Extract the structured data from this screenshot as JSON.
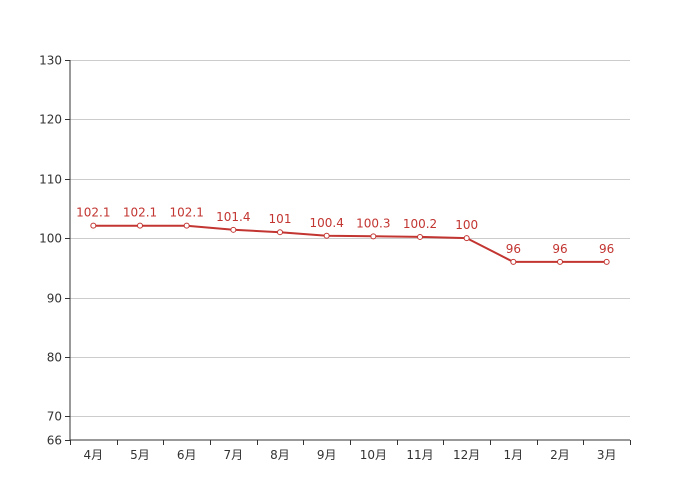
{
  "chart_data": {
    "type": "line",
    "categories": [
      "4月",
      "5月",
      "6月",
      "7月",
      "8月",
      "9月",
      "10月",
      "11月",
      "12月",
      "1月",
      "2月",
      "3月"
    ],
    "series": [
      {
        "values": [
          102.1,
          102.1,
          102.1,
          101.4,
          101,
          100.4,
          100.3,
          100.2,
          100,
          96,
          96,
          96
        ],
        "color": "#c23531"
      }
    ],
    "data_labels": [
      "102.1",
      "102.1",
      "102.1",
      "101.4",
      "101",
      "100.4",
      "100.3",
      "100.2",
      "100",
      "96",
      "96",
      "96"
    ],
    "ylim": [
      66,
      130
    ],
    "y_ticks": [
      66,
      70,
      80,
      90,
      100,
      110,
      120,
      130
    ],
    "y_tick_labels": [
      "66",
      "70",
      "80",
      "90",
      "100",
      "110",
      "120",
      "130"
    ],
    "grid": true,
    "axis_color": "#333333",
    "grid_color": "#cccccc"
  }
}
